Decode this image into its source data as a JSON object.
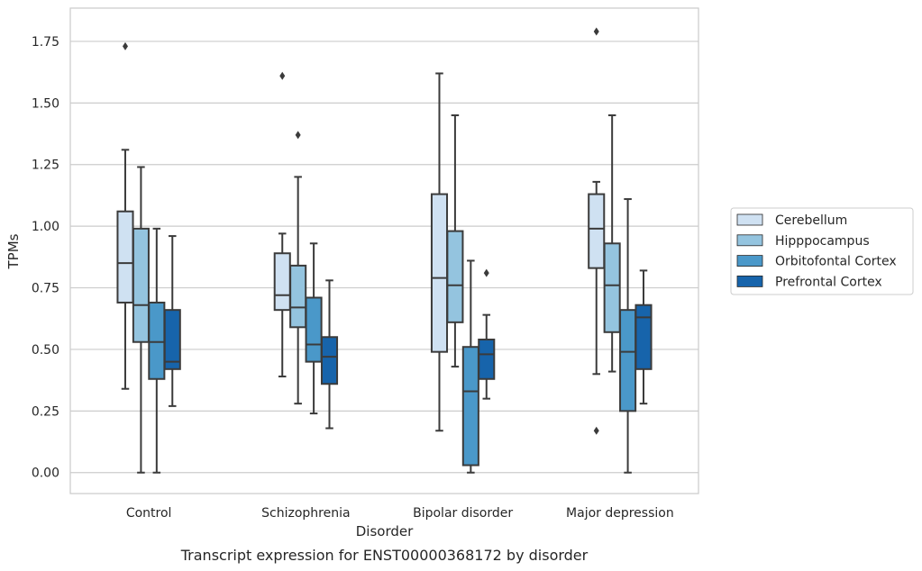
{
  "caption": "Transcript expression for ENST00000368172 by disorder",
  "chart_data": {
    "type": "box",
    "xlabel": "Disorder",
    "ylabel": "TPMs",
    "ylim": [
      -0.085,
      1.885
    ],
    "yticks": [
      0.0,
      0.25,
      0.5,
      0.75,
      1.0,
      1.25,
      1.5,
      1.75
    ],
    "ytick_labels": [
      "0.00",
      "0.25",
      "0.50",
      "0.75",
      "1.00",
      "1.25",
      "1.50",
      "1.75"
    ],
    "grid": "horizontal",
    "legend_position": "right",
    "categories": [
      "Control",
      "Schizophrenia",
      "Bipolar disorder",
      "Major depression"
    ],
    "series": [
      {
        "name": "Cerebellum",
        "color": "#cfe1f2",
        "boxes": [
          {
            "whislo": 0.34,
            "q1": 0.69,
            "med": 0.85,
            "q3": 1.06,
            "whishi": 1.31,
            "fliers": [
              1.73
            ]
          },
          {
            "whislo": 0.39,
            "q1": 0.66,
            "med": 0.72,
            "q3": 0.89,
            "whishi": 0.97,
            "fliers": [
              1.61
            ]
          },
          {
            "whislo": 0.17,
            "q1": 0.49,
            "med": 0.79,
            "q3": 1.13,
            "whishi": 1.62,
            "fliers": []
          },
          {
            "whislo": 0.4,
            "q1": 0.83,
            "med": 0.99,
            "q3": 1.13,
            "whishi": 1.18,
            "fliers": [
              1.79,
              0.17
            ]
          }
        ]
      },
      {
        "name": "Hipppocampus",
        "color": "#94c4df",
        "boxes": [
          {
            "whislo": 0.0,
            "q1": 0.53,
            "med": 0.68,
            "q3": 0.99,
            "whishi": 1.24,
            "fliers": []
          },
          {
            "whislo": 0.28,
            "q1": 0.59,
            "med": 0.67,
            "q3": 0.84,
            "whishi": 1.2,
            "fliers": [
              1.37
            ]
          },
          {
            "whislo": 0.43,
            "q1": 0.61,
            "med": 0.76,
            "q3": 0.98,
            "whishi": 1.45,
            "fliers": []
          },
          {
            "whislo": 0.41,
            "q1": 0.57,
            "med": 0.76,
            "q3": 0.93,
            "whishi": 1.45,
            "fliers": []
          }
        ]
      },
      {
        "name": "Orbitofontal Cortex",
        "color": "#4a98c9",
        "boxes": [
          {
            "whislo": 0.0,
            "q1": 0.38,
            "med": 0.53,
            "q3": 0.69,
            "whishi": 0.99,
            "fliers": []
          },
          {
            "whislo": 0.24,
            "q1": 0.45,
            "med": 0.52,
            "q3": 0.71,
            "whishi": 0.93,
            "fliers": []
          },
          {
            "whislo": 0.0,
            "q1": 0.03,
            "med": 0.33,
            "q3": 0.51,
            "whishi": 0.86,
            "fliers": []
          },
          {
            "whislo": 0.0,
            "q1": 0.25,
            "med": 0.49,
            "q3": 0.66,
            "whishi": 1.11,
            "fliers": []
          }
        ]
      },
      {
        "name": "Prefrontal Cortex",
        "color": "#1764ab",
        "boxes": [
          {
            "whislo": 0.27,
            "q1": 0.42,
            "med": 0.45,
            "q3": 0.66,
            "whishi": 0.96,
            "fliers": []
          },
          {
            "whislo": 0.18,
            "q1": 0.36,
            "med": 0.47,
            "q3": 0.55,
            "whishi": 0.78,
            "fliers": []
          },
          {
            "whislo": 0.3,
            "q1": 0.38,
            "med": 0.48,
            "q3": 0.54,
            "whishi": 0.64,
            "fliers": [
              0.81
            ]
          },
          {
            "whislo": 0.28,
            "q1": 0.42,
            "med": 0.63,
            "q3": 0.68,
            "whishi": 0.82,
            "fliers": []
          }
        ]
      }
    ]
  }
}
